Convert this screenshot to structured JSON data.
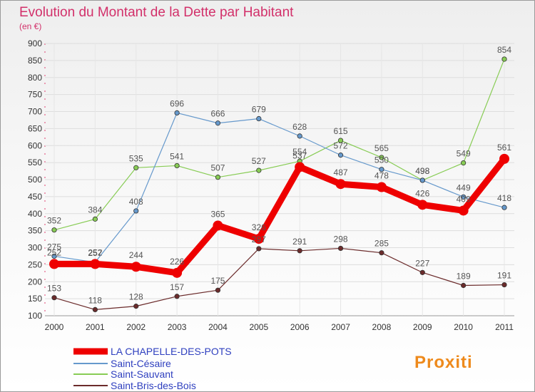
{
  "chart_data": {
    "type": "line",
    "title": "Evolution du Montant de la Dette par Habitant",
    "subtitle": "(en €)",
    "x": [
      "2000",
      "2001",
      "2002",
      "2003",
      "2004",
      "2005",
      "2006",
      "2007",
      "2008",
      "2009",
      "2010",
      "2011"
    ],
    "ylim": [
      100,
      900
    ],
    "yticks": [
      100,
      150,
      200,
      250,
      300,
      350,
      400,
      450,
      500,
      550,
      600,
      650,
      700,
      750,
      800,
      850,
      900
    ],
    "grid": true,
    "legend_position": "bottom-left",
    "series": [
      {
        "name": "LA CHAPELLE-DES-POTS",
        "color": "#ee0000",
        "values": [
          252,
          252,
          244,
          226,
          365,
          326,
          537,
          487,
          478,
          426,
          409,
          561
        ]
      },
      {
        "name": "Saint-Césaire",
        "color": "#6699cc",
        "values": [
          275,
          257,
          408,
          696,
          666,
          679,
          628,
          572,
          530,
          498,
          449,
          418
        ]
      },
      {
        "name": "Saint-Sauvant",
        "color": "#88cc55",
        "values": [
          352,
          384,
          535,
          541,
          507,
          527,
          554,
          615,
          565,
          498,
          549,
          854
        ]
      },
      {
        "name": "Saint-Bris-des-Bois",
        "color": "#6b2b2b",
        "values": [
          153,
          118,
          128,
          157,
          175,
          297,
          291,
          298,
          285,
          227,
          189,
          191
        ]
      }
    ]
  },
  "logo": {
    "text": "Proxiti"
  }
}
